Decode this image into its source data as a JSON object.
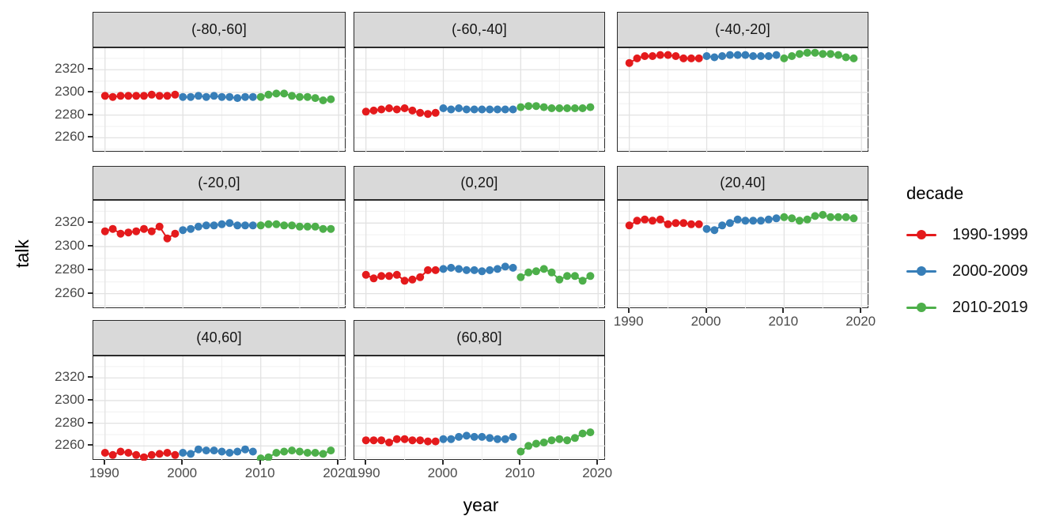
{
  "axes": {
    "x_title": "year",
    "y_title": "talk",
    "x_tick_labels": [
      "1990",
      "2000",
      "2010",
      "2020"
    ],
    "y_tick_labels": [
      "2320",
      "2300",
      "2280",
      "2260"
    ]
  },
  "legend": {
    "title": "decade",
    "entries": [
      {
        "label": "1990-1999",
        "color": "#E41A1C"
      },
      {
        "label": "2000-2009",
        "color": "#377EB8"
      },
      {
        "label": "2010-2019",
        "color": "#4DAF4A"
      }
    ]
  },
  "chart_data": {
    "type": "scatter",
    "title": "",
    "xlabel": "year",
    "ylabel": "talk",
    "legend_title": "decade",
    "legend_position": "right",
    "grid": true,
    "x_ticks": [
      1990,
      2000,
      2010,
      2020
    ],
    "x_minor_ticks": [
      1995,
      2005,
      2015
    ],
    "y_ticks": [
      2260,
      2280,
      2300,
      2320
    ],
    "y_minor_ticks": [
      2250,
      2270,
      2290,
      2310,
      2330
    ],
    "xlim": [
      1988.5,
      2021
    ],
    "ylim": [
      2247,
      2339
    ],
    "series_names": [
      "1990-1999",
      "2000-2009",
      "2010-2019"
    ],
    "series_colors": [
      "#E41A1C",
      "#377EB8",
      "#4DAF4A"
    ],
    "facets": [
      {
        "label": "(-80,-60]",
        "series": [
          {
            "name": "1990-1999",
            "x_start": 1990,
            "values": [
              2297,
              2296,
              2297,
              2297,
              2297,
              2297,
              2298,
              2297,
              2297,
              2298
            ]
          },
          {
            "name": "2000-2009",
            "x_start": 2000,
            "values": [
              2296,
              2296,
              2297,
              2296,
              2297,
              2296,
              2296,
              2295,
              2296,
              2296
            ]
          },
          {
            "name": "2010-2019",
            "x_start": 2010,
            "values": [
              2296,
              2298,
              2299,
              2299,
              2297,
              2296,
              2296,
              2295,
              2293,
              2294
            ]
          }
        ]
      },
      {
        "label": "(-60,-40]",
        "series": [
          {
            "name": "1990-1999",
            "x_start": 1990,
            "values": [
              2283,
              2284,
              2285,
              2286,
              2285,
              2286,
              2284,
              2282,
              2281,
              2282
            ]
          },
          {
            "name": "2000-2009",
            "x_start": 2000,
            "values": [
              2286,
              2285,
              2286,
              2285,
              2285,
              2285,
              2285,
              2285,
              2285,
              2285
            ]
          },
          {
            "name": "2010-2019",
            "x_start": 2010,
            "values": [
              2287,
              2288,
              2288,
              2287,
              2286,
              2286,
              2286,
              2286,
              2286,
              2287
            ]
          }
        ]
      },
      {
        "label": "(-40,-20]",
        "series": [
          {
            "name": "1990-1999",
            "x_start": 1990,
            "values": [
              2326,
              2330,
              2332,
              2332,
              2333,
              2333,
              2332,
              2330,
              2330,
              2330
            ]
          },
          {
            "name": "2000-2009",
            "x_start": 2000,
            "values": [
              2332,
              2331,
              2332,
              2333,
              2333,
              2333,
              2332,
              2332,
              2332,
              2333
            ]
          },
          {
            "name": "2010-2019",
            "x_start": 2010,
            "values": [
              2330,
              2332,
              2334,
              2335,
              2335,
              2334,
              2334,
              2333,
              2331,
              2330
            ]
          }
        ]
      },
      {
        "label": "(-20,0]",
        "series": [
          {
            "name": "1990-1999",
            "x_start": 1990,
            "values": [
              2313,
              2315,
              2311,
              2312,
              2313,
              2315,
              2313,
              2317,
              2307,
              2311
            ]
          },
          {
            "name": "2000-2009",
            "x_start": 2000,
            "values": [
              2314,
              2315,
              2317,
              2318,
              2318,
              2319,
              2320,
              2318,
              2318,
              2318
            ]
          },
          {
            "name": "2010-2019",
            "x_start": 2010,
            "values": [
              2318,
              2319,
              2319,
              2318,
              2318,
              2317,
              2317,
              2317,
              2315,
              2315
            ]
          }
        ]
      },
      {
        "label": "(0,20]",
        "series": [
          {
            "name": "1990-1999",
            "x_start": 1990,
            "values": [
              2276,
              2273,
              2275,
              2275,
              2276,
              2271,
              2272,
              2274,
              2280,
              2280
            ]
          },
          {
            "name": "2000-2009",
            "x_start": 2000,
            "values": [
              2281,
              2282,
              2281,
              2280,
              2280,
              2279,
              2280,
              2281,
              2283,
              2282
            ]
          },
          {
            "name": "2010-2019",
            "x_start": 2010,
            "values": [
              2274,
              2278,
              2279,
              2281,
              2278,
              2272,
              2275,
              2275,
              2271,
              2275
            ]
          }
        ]
      },
      {
        "label": "(20,40]",
        "series": [
          {
            "name": "1990-1999",
            "x_start": 1990,
            "values": [
              2318,
              2322,
              2323,
              2322,
              2323,
              2319,
              2320,
              2320,
              2319,
              2319
            ]
          },
          {
            "name": "2000-2009",
            "x_start": 2000,
            "values": [
              2315,
              2314,
              2318,
              2320,
              2323,
              2322,
              2322,
              2322,
              2323,
              2324
            ]
          },
          {
            "name": "2010-2019",
            "x_start": 2010,
            "values": [
              2325,
              2324,
              2322,
              2323,
              2326,
              2327,
              2325,
              2325,
              2325,
              2324
            ]
          }
        ]
      },
      {
        "label": "(40,60]",
        "series": [
          {
            "name": "1990-1999",
            "x_start": 1990,
            "values": [
              2254,
              2252,
              2255,
              2254,
              2252,
              2250,
              2252,
              2253,
              2254,
              2252
            ]
          },
          {
            "name": "2000-2009",
            "x_start": 2000,
            "values": [
              2254,
              2253,
              2257,
              2256,
              2256,
              2255,
              2254,
              2255,
              2257,
              2255
            ]
          },
          {
            "name": "2010-2019",
            "x_start": 2010,
            "values": [
              2249,
              2250,
              2254,
              2255,
              2256,
              2255,
              2254,
              2254,
              2253,
              2256
            ]
          }
        ]
      },
      {
        "label": "(60,80]",
        "series": [
          {
            "name": "1990-1999",
            "x_start": 1990,
            "values": [
              2265,
              2265,
              2265,
              2263,
              2266,
              2266,
              2265,
              2265,
              2264,
              2264
            ]
          },
          {
            "name": "2000-2009",
            "x_start": 2000,
            "values": [
              2266,
              2266,
              2268,
              2269,
              2268,
              2268,
              2267,
              2266,
              2266,
              2268
            ]
          },
          {
            "name": "2010-2019",
            "x_start": 2010,
            "values": [
              2255,
              2260,
              2262,
              2263,
              2265,
              2266,
              2265,
              2267,
              2271,
              2272
            ]
          }
        ]
      }
    ]
  }
}
